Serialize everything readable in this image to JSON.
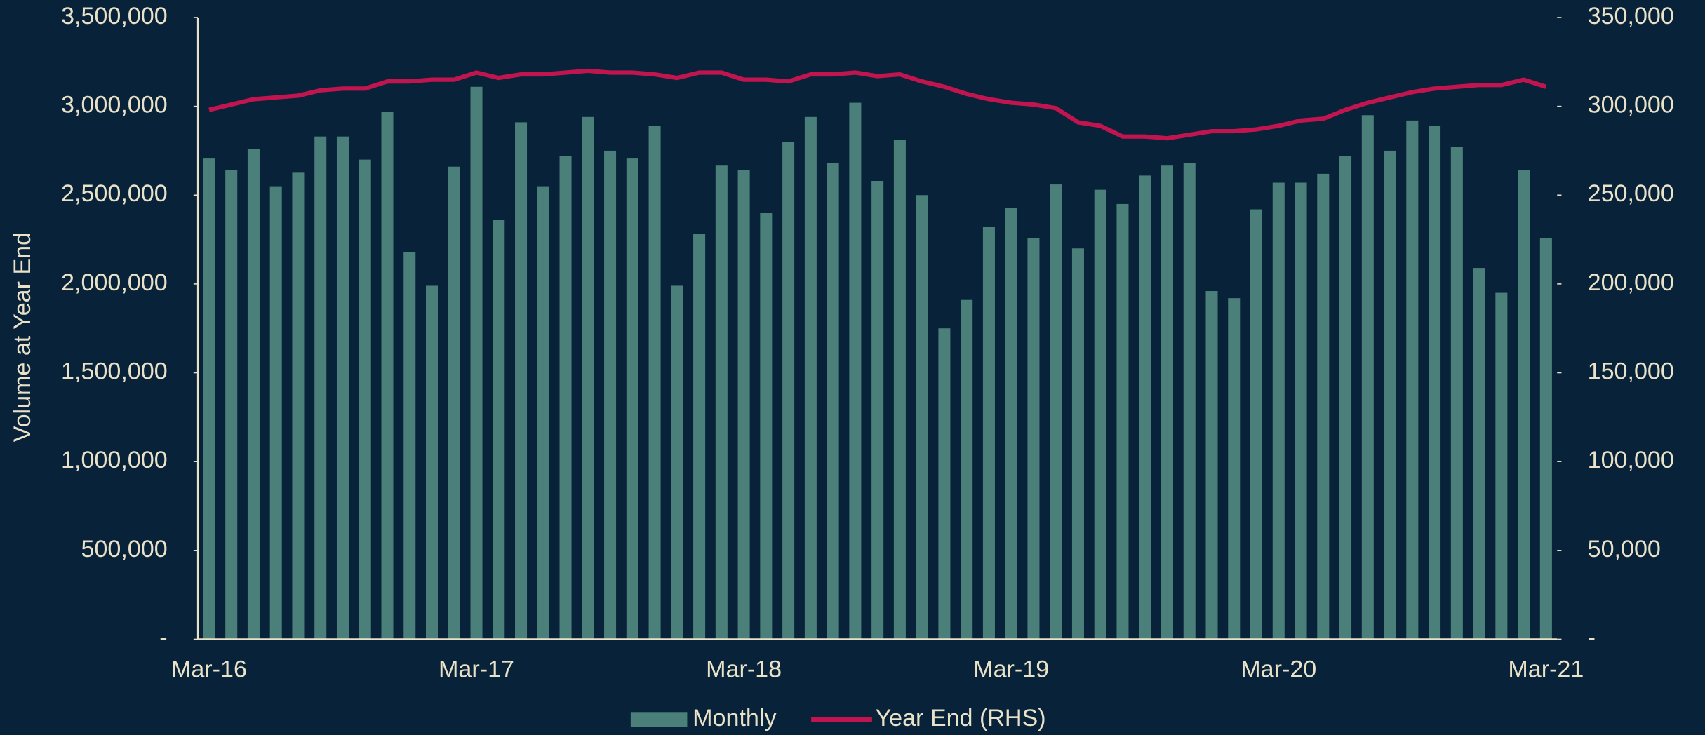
{
  "chart_data": {
    "type": "bar-line",
    "y_axis_label": "Volume at Year End",
    "categories": [
      "Mar-16",
      null,
      null,
      null,
      null,
      null,
      null,
      null,
      null,
      null,
      null,
      null,
      "Mar-17",
      null,
      null,
      null,
      null,
      null,
      null,
      null,
      null,
      null,
      null,
      null,
      "Mar-18",
      null,
      null,
      null,
      null,
      null,
      null,
      null,
      null,
      null,
      null,
      null,
      "Mar-19",
      null,
      null,
      null,
      null,
      null,
      null,
      null,
      null,
      null,
      null,
      null,
      "Mar-20",
      null,
      null,
      null,
      null,
      null,
      null,
      null,
      null,
      null,
      null,
      null,
      "Mar-21"
    ],
    "series": [
      {
        "name": "Monthly",
        "type": "bar",
        "color": "#4b7f79",
        "values": [
          2710000,
          2640000,
          2760000,
          2550000,
          2630000,
          2830000,
          2830000,
          2700000,
          2970000,
          2180000,
          1990000,
          2660000,
          3110000,
          2360000,
          2910000,
          2550000,
          2720000,
          2940000,
          2750000,
          2710000,
          2890000,
          1990000,
          2280000,
          2670000,
          2640000,
          2400000,
          2800000,
          2940000,
          2680000,
          3020000,
          2580000,
          2810000,
          2500000,
          1750000,
          1910000,
          2320000,
          2430000,
          2260000,
          2560000,
          2200000,
          2530000,
          2450000,
          2610000,
          2670000,
          2680000,
          1960000,
          1920000,
          2420000,
          2570000,
          2570000,
          2620000,
          2720000,
          2950000,
          2750000,
          2920000,
          2890000,
          2770000,
          2090000,
          1950000,
          2640000,
          2260000
        ]
      },
      {
        "name": "Year End (RHS)",
        "type": "line",
        "axis": "y2",
        "color": "#c0154f",
        "values": [
          298000,
          301000,
          304000,
          305000,
          306000,
          309000,
          310000,
          310000,
          314000,
          314000,
          315000,
          315000,
          319000,
          316000,
          318000,
          318000,
          319000,
          320000,
          319000,
          319000,
          318000,
          316000,
          319000,
          319000,
          315000,
          315000,
          314000,
          318000,
          318000,
          319000,
          317000,
          318000,
          314000,
          311000,
          307000,
          304000,
          302000,
          301000,
          299000,
          291000,
          289000,
          283000,
          283000,
          282000,
          284000,
          286000,
          286000,
          287000,
          289000,
          292000,
          293000,
          298000,
          302000,
          305000,
          308000,
          310000,
          311000,
          312000,
          312000,
          315000,
          311000
        ]
      }
    ],
    "ylim": [
      0,
      3500000
    ],
    "yticks": [
      {
        "value": 0,
        "label": "-"
      },
      {
        "value": 500000,
        "label": "500,000"
      },
      {
        "value": 1000000,
        "label": "1,000,000"
      },
      {
        "value": 1500000,
        "label": "1,500,000"
      },
      {
        "value": 2000000,
        "label": "2,000,000"
      },
      {
        "value": 2500000,
        "label": "2,500,000"
      },
      {
        "value": 3000000,
        "label": "3,000,000"
      },
      {
        "value": 3500000,
        "label": "3,500,000"
      }
    ],
    "y2lim": [
      0,
      350000
    ],
    "y2ticks": [
      {
        "value": 0,
        "label": "-"
      },
      {
        "value": 50000,
        "label": "50,000"
      },
      {
        "value": 100000,
        "label": "100,000"
      },
      {
        "value": 150000,
        "label": "150,000"
      },
      {
        "value": 200000,
        "label": "200,000"
      },
      {
        "value": 250000,
        "label": "250,000"
      },
      {
        "value": 300000,
        "label": "300,000"
      },
      {
        "value": 350000,
        "label": "350,000"
      }
    ],
    "legend": "bottom",
    "grid": false
  }
}
